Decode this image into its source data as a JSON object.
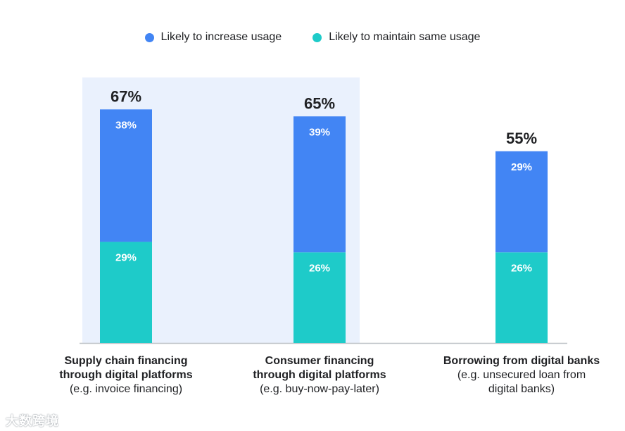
{
  "colors": {
    "increase": "#4285F4",
    "maintain": "#1ECBC9",
    "highlight": "#EAF1FD",
    "axis": "#BDC1C6",
    "total": "#202124"
  },
  "legend": {
    "increase": "Likely to increase usage",
    "maintain": "Likely to maintain same usage"
  },
  "categories": [
    {
      "line1": "Supply chain financing",
      "line2": "through digital platforms",
      "line3": "(e.g. invoice financing)"
    },
    {
      "line1": "Consumer financing",
      "line2": "through digital platforms",
      "line3": "(e.g. buy-now-pay-later)"
    },
    {
      "line1": "Borrowing from digital banks",
      "line2": "(e.g. unsecured loan from",
      "line3": "digital banks)"
    }
  ],
  "chart_data": {
    "type": "bar",
    "stacked": true,
    "categories": [
      "Supply chain financing through digital platforms (e.g. invoice financing)",
      "Consumer financing through digital platforms (e.g. buy-now-pay-later)",
      "Borrowing from digital banks (e.g. unsecured loan from digital banks)"
    ],
    "series": [
      {
        "name": "Likely to maintain same usage",
        "values": [
          29,
          26,
          26
        ],
        "labels": [
          "29%",
          "26%",
          "26%"
        ]
      },
      {
        "name": "Likely to increase usage",
        "values": [
          38,
          39,
          29
        ],
        "labels": [
          "38%",
          "39%",
          "29%"
        ]
      }
    ],
    "totals": [
      67,
      65,
      55
    ],
    "total_labels": [
      "67%",
      "65%",
      "55%"
    ],
    "highlighted_categories": [
      0,
      1
    ],
    "legend_position": "top",
    "grid": false
  },
  "watermark": "大数跨境"
}
